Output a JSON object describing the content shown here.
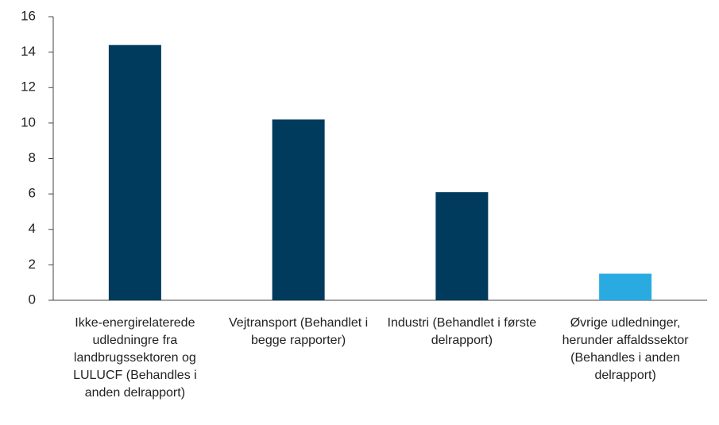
{
  "chart_data": {
    "type": "bar",
    "categories": [
      "Ikke-energirelaterede udledningre fra landbrugssektoren og LULUCF (Behandles i anden delrapport)",
      "Vejtransport (Behandlet i begge rapporter)",
      "Industri (Behandlet i første delrapport)",
      "Øvrige udledninger, herunder affaldssektor (Behandles i anden delrapport)"
    ],
    "values": [
      14.4,
      10.2,
      6.1,
      1.5
    ],
    "colors": [
      "#003a5c",
      "#003a5c",
      "#003a5c",
      "#29abe2"
    ],
    "ylim": [
      0,
      16
    ],
    "yticks": [
      0,
      2,
      4,
      6,
      8,
      10,
      12,
      14,
      16
    ],
    "grid": false
  }
}
